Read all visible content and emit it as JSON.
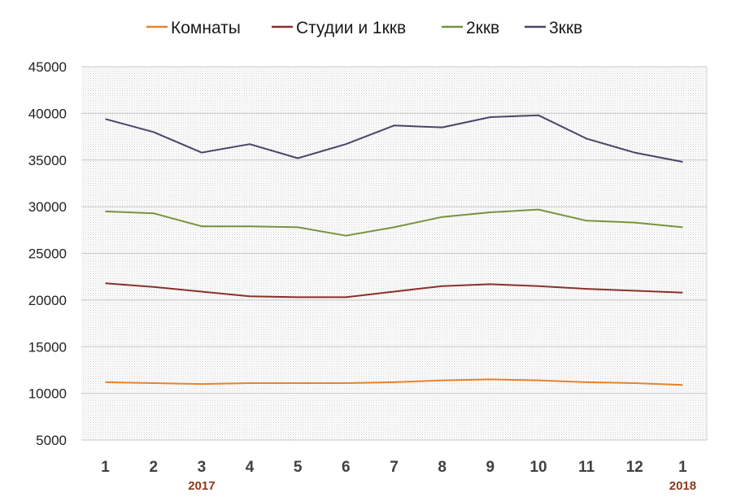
{
  "chart_data": {
    "type": "line",
    "title": "",
    "xlabel": "",
    "ylabel": "",
    "categories": [
      "1",
      "2",
      "3",
      "4",
      "5",
      "6",
      "7",
      "8",
      "9",
      "10",
      "11",
      "12",
      "1"
    ],
    "year_labels": [
      {
        "category_index": 2,
        "text": "2017"
      },
      {
        "category_index": 12,
        "text": "2018"
      }
    ],
    "ylim": [
      5000,
      45000
    ],
    "yticks": [
      5000,
      10000,
      15000,
      20000,
      25000,
      30000,
      35000,
      40000,
      45000
    ],
    "grid": true,
    "legend_position": "top",
    "series": [
      {
        "name": "Комнаты",
        "color": "#e8822a",
        "values": [
          11200,
          11100,
          11000,
          11100,
          11100,
          11100,
          11200,
          11400,
          11500,
          11400,
          11200,
          11100,
          10900
        ]
      },
      {
        "name": "Студии и 1ккв",
        "color": "#8b2f2a",
        "values": [
          21800,
          21400,
          20900,
          20400,
          20300,
          20300,
          20900,
          21500,
          21700,
          21500,
          21200,
          21000,
          20800
        ]
      },
      {
        "name": "2ккв",
        "color": "#77933c",
        "values": [
          29500,
          29300,
          27900,
          27900,
          27800,
          26900,
          27800,
          28900,
          29400,
          29700,
          28500,
          28300,
          27800
        ]
      },
      {
        "name": "3ккв",
        "color": "#4a4468",
        "values": [
          39400,
          38000,
          35800,
          36700,
          35200,
          36700,
          38700,
          38500,
          39600,
          39800,
          37300,
          35800,
          34800
        ]
      }
    ]
  }
}
